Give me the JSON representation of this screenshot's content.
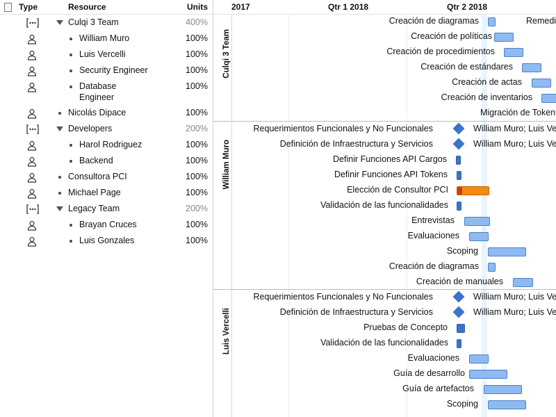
{
  "columns": {
    "doc_icon": "document-icon",
    "type": "Type",
    "resource": "Resource",
    "units": "Units"
  },
  "resources": [
    {
      "name": "Culqi 3 Team",
      "units": "400%",
      "kind": "group",
      "level": 0
    },
    {
      "name": "William Muro",
      "units": "100%",
      "kind": "person",
      "level": 1
    },
    {
      "name": "Luis Vercelli",
      "units": "100%",
      "kind": "person",
      "level": 1
    },
    {
      "name": "Security Engineer",
      "units": "100%",
      "kind": "person",
      "level": 1
    },
    {
      "name": "Database Engineer",
      "name_line1": "Database",
      "name_line2": "Engineer",
      "units": "100%",
      "kind": "person",
      "level": 1
    },
    {
      "name": "Nicolás Dipace",
      "units": "100%",
      "kind": "person",
      "level": 0
    },
    {
      "name": "Developers",
      "units": "200%",
      "kind": "group",
      "level": 0
    },
    {
      "name": "Harol Rodriguez",
      "units": "100%",
      "kind": "person",
      "level": 1
    },
    {
      "name": "Backend",
      "units": "100%",
      "kind": "person",
      "level": 1
    },
    {
      "name": "Consultora PCI",
      "units": "100%",
      "kind": "person",
      "level": 0
    },
    {
      "name": "Michael Page",
      "units": "100%",
      "kind": "person",
      "level": 0
    },
    {
      "name": "Legacy Team",
      "units": "200%",
      "kind": "group",
      "level": 0
    },
    {
      "name": "Brayan Cruces",
      "units": "100%",
      "kind": "person",
      "level": 1
    },
    {
      "name": "Luis Gonzales",
      "units": "100%",
      "kind": "person",
      "level": 1
    }
  ],
  "timeline": {
    "quarters": [
      "2017",
      "Qtr 1 2018",
      "Qtr 2 2018"
    ]
  },
  "sections": [
    {
      "label": "Culqi 3 Team",
      "tasks": [
        {
          "name": "Creación de diagramas",
          "type": "bar",
          "resource": "Remedi"
        },
        {
          "name": "Creación de políticas",
          "type": "bar"
        },
        {
          "name": "Creación de procedimientos",
          "type": "bar"
        },
        {
          "name": "Creación de estándares",
          "type": "bar"
        },
        {
          "name": "Creación de actas",
          "type": "bar"
        },
        {
          "name": "Creación de inventarios",
          "type": "bar"
        },
        {
          "name": "Migración de Token",
          "type": "none"
        }
      ]
    },
    {
      "label": "William Muro",
      "tasks": [
        {
          "name": "Requerimientos Funcionales y No Funcionales",
          "type": "milestone",
          "resource": "William Muro; Luis Ve"
        },
        {
          "name": "Definición de Infraestructura y Servicios",
          "type": "milestone",
          "resource": "William Muro; Luis Ve"
        },
        {
          "name": "Definir Funciones API Cargos",
          "type": "bar"
        },
        {
          "name": "Definir Funciones API Tokens",
          "type": "bar"
        },
        {
          "name": "Elección de Consultor PCI",
          "type": "bar"
        },
        {
          "name": "Validación de las funcionalidades",
          "type": "bar"
        },
        {
          "name": "Entrevistas",
          "type": "bar"
        },
        {
          "name": "Evaluaciones",
          "type": "bar"
        },
        {
          "name": "Scoping",
          "type": "bar"
        },
        {
          "name": "Creación de diagramas",
          "type": "bar"
        },
        {
          "name": "Creación de manuales",
          "type": "bar"
        }
      ]
    },
    {
      "label": "Luis Vercelli",
      "tasks": [
        {
          "name": "Requerimientos Funcionales y No Funcionales",
          "type": "milestone",
          "resource": "William Muro; Luis Ve"
        },
        {
          "name": "Definición de Infraestructura y Servicios",
          "type": "milestone",
          "resource": "William Muro; Luis Ve"
        },
        {
          "name": "Pruebas de Concepto",
          "type": "bar"
        },
        {
          "name": "Validación de las funcionalidades",
          "type": "bar"
        },
        {
          "name": "Evaluaciones",
          "type": "bar"
        },
        {
          "name": "Guía de desarrollo",
          "type": "bar"
        },
        {
          "name": "Guía de artefactos",
          "type": "bar"
        },
        {
          "name": "Scoping",
          "type": "bar"
        }
      ]
    }
  ],
  "colors": {
    "bar": "#8fbaf1",
    "bar_border": "#4a7fc8",
    "milestone": "#3b73c8",
    "critical": "#c9400e",
    "highlight": "#f18a12",
    "today_band": "#eaf4fd"
  }
}
